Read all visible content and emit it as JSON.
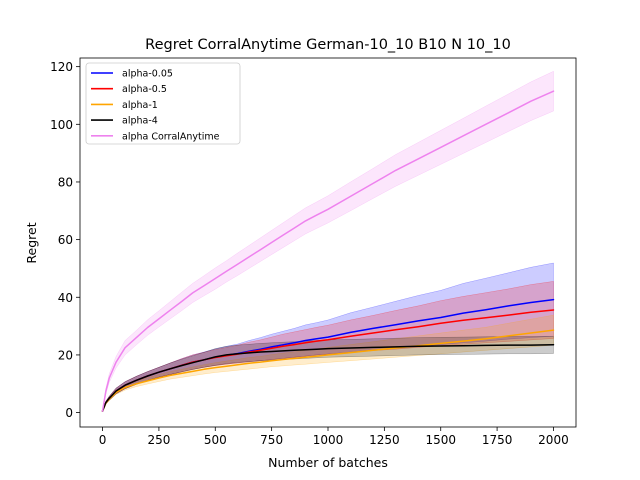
{
  "chart_data": {
    "type": "line",
    "title": "Regret CorralAnytime German-10_10 B10 N 10_10",
    "xlabel": "Number of batches",
    "ylabel": "Regret",
    "xlim": [
      -100,
      2100
    ],
    "ylim": [
      -5,
      123
    ],
    "xticks": [
      0,
      250,
      500,
      750,
      1000,
      1250,
      1500,
      1750,
      2000
    ],
    "yticks": [
      0,
      20,
      40,
      60,
      80,
      100,
      120
    ],
    "grid": false,
    "legend_position": "top-left",
    "x": [
      0,
      15,
      30,
      60,
      100,
      150,
      200,
      250,
      300,
      350,
      400,
      450,
      500,
      550,
      600,
      650,
      700,
      750,
      800,
      850,
      900,
      950,
      1000,
      1100,
      1200,
      1300,
      1400,
      1500,
      1600,
      1700,
      1800,
      1900,
      2000
    ],
    "series": [
      {
        "name": "alpha-0.05",
        "color": "#0000ff",
        "values": [
          0.5,
          3.5,
          5,
          7.5,
          9.5,
          11.2,
          12.7,
          14,
          15.2,
          16.4,
          17.5,
          18.3,
          19.2,
          19.9,
          20.5,
          21.3,
          22,
          22.8,
          23.5,
          24.2,
          25,
          25.6,
          26.2,
          27.8,
          29.2,
          30.5,
          31.8,
          33,
          34.5,
          35.7,
          37,
          38.2,
          39.2
        ],
        "lower": [
          0.3,
          3,
          4.3,
          6.5,
          8.3,
          9.8,
          11.2,
          12.3,
          13.2,
          14.1,
          15,
          15.7,
          16.3,
          16.8,
          17.2,
          17.6,
          18,
          18.4,
          18.8,
          19.2,
          19.6,
          20,
          20.3,
          21,
          21.8,
          22.4,
          23,
          23.6,
          24.2,
          24.8,
          25.5,
          26,
          26.5
        ],
        "upper": [
          0.7,
          4,
          5.7,
          8.5,
          10.7,
          12.6,
          14.2,
          15.7,
          17.2,
          18.7,
          20,
          21,
          22.1,
          23,
          23.8,
          25,
          26,
          27.2,
          28.2,
          29.2,
          30.4,
          31.2,
          32.1,
          34.6,
          36.6,
          38.6,
          40.6,
          42.4,
          44.8,
          46.6,
          48.5,
          50.4,
          51.9
        ]
      },
      {
        "name": "alpha-0.5",
        "color": "#ff0000",
        "values": [
          0.5,
          3.5,
          5,
          7.5,
          9.5,
          11.2,
          12.7,
          14,
          15.2,
          16.4,
          17.5,
          18.3,
          19.1,
          19.7,
          20.3,
          21,
          21.6,
          22.3,
          23,
          23.6,
          24.2,
          24.8,
          25.3,
          26.5,
          27.6,
          28.7,
          29.8,
          31,
          32,
          32.9,
          33.8,
          34.8,
          35.6
        ],
        "lower": [
          0.3,
          3,
          4.3,
          6.5,
          8.3,
          9.8,
          11.2,
          12.3,
          13.2,
          14.1,
          15,
          15.7,
          16.3,
          16.8,
          17.2,
          17.6,
          18,
          18.4,
          18.8,
          19.2,
          19.6,
          20,
          20.3,
          20.9,
          21.5,
          22,
          22.6,
          23.2,
          23.7,
          24.2,
          24.7,
          25.2,
          25.7
        ],
        "upper": [
          0.7,
          4,
          5.7,
          8.5,
          10.7,
          12.6,
          14.2,
          15.7,
          17.2,
          18.7,
          20,
          20.9,
          21.9,
          22.6,
          23.4,
          24.4,
          25.2,
          26.2,
          27.2,
          28,
          28.8,
          29.6,
          30.3,
          32.1,
          33.7,
          35.4,
          37,
          38.8,
          40.3,
          41.6,
          42.9,
          44.4,
          45.5
        ]
      },
      {
        "name": "alpha-1",
        "color": "#ffa500",
        "values": [
          0.5,
          3.3,
          4.7,
          7,
          8.7,
          10,
          11,
          12,
          12.9,
          13.6,
          14.3,
          15,
          15.6,
          16.1,
          16.6,
          17.1,
          17.5,
          18,
          18.4,
          18.8,
          19.2,
          19.6,
          20,
          20.8,
          21.6,
          22.4,
          23.2,
          24,
          24.8,
          25.6,
          26.6,
          27.6,
          28.6
        ],
        "lower": [
          0.3,
          2.9,
          4.2,
          6.3,
          7.8,
          9,
          9.9,
          10.8,
          11.6,
          12.2,
          12.8,
          13.4,
          13.9,
          14.3,
          14.7,
          15.1,
          15.5,
          15.9,
          16.2,
          16.5,
          16.8,
          17.1,
          17.4,
          18,
          18.6,
          19.2,
          19.8,
          20.4,
          21,
          21.6,
          22.2,
          22.8,
          23.4
        ],
        "upper": [
          0.7,
          3.7,
          5.2,
          7.7,
          9.6,
          11,
          12.1,
          13.2,
          14.2,
          15,
          15.8,
          16.6,
          17.3,
          17.9,
          18.5,
          19.1,
          19.5,
          20.1,
          20.6,
          21.1,
          21.6,
          22.1,
          22.6,
          23.6,
          24.6,
          25.6,
          26.6,
          27.6,
          28.6,
          29.6,
          31,
          32.4,
          33.8
        ]
      },
      {
        "name": "alpha-4",
        "color": "#000000",
        "values": [
          0.5,
          3.5,
          5,
          7.5,
          9.5,
          11.2,
          12.7,
          14,
          15.2,
          16.3,
          17.3,
          18.3,
          19.3,
          20,
          20.4,
          20.7,
          21,
          21.2,
          21.4,
          21.6,
          21.8,
          22,
          22.2,
          22.4,
          22.6,
          22.8,
          23,
          23.1,
          23.2,
          23.3,
          23.4,
          23.4,
          23.5
        ],
        "lower": [
          0.3,
          3,
          4.3,
          6.5,
          8.3,
          9.8,
          11.2,
          12.3,
          13.2,
          14.1,
          14.9,
          15.7,
          16.4,
          17,
          17.4,
          17.7,
          18,
          18.2,
          18.4,
          18.6,
          18.8,
          19,
          19.2,
          19.4,
          19.6,
          19.8,
          20,
          20.1,
          20.2,
          20.3,
          20.4,
          20.4,
          20.5
        ],
        "upper": [
          0.7,
          4,
          5.7,
          8.5,
          10.7,
          12.6,
          14.2,
          15.7,
          17.2,
          18.5,
          19.7,
          20.9,
          22.2,
          23,
          23.4,
          23.7,
          24,
          24.2,
          24.4,
          24.6,
          24.8,
          25,
          25.2,
          25.4,
          25.6,
          25.8,
          26,
          26.1,
          26.2,
          26.3,
          26.4,
          26.4,
          26.5
        ]
      },
      {
        "name": "alpha CorralAnytime",
        "color": "#ee82ee",
        "values": [
          0.5,
          7.5,
          12,
          17.5,
          22.5,
          26,
          29.5,
          32.5,
          35.5,
          38.5,
          41.5,
          44,
          46.5,
          49,
          51.5,
          54,
          56.5,
          59,
          61.5,
          64,
          66.5,
          68.5,
          70.5,
          75,
          79.5,
          84,
          88,
          92,
          96,
          100,
          104,
          108,
          111.5
        ],
        "lower": [
          0.3,
          6.5,
          10.5,
          15.5,
          20,
          23.5,
          26.8,
          29.7,
          32.5,
          35.3,
          38.2,
          40.5,
          42.8,
          45.3,
          47.6,
          50,
          52.4,
          54.8,
          57.2,
          59.6,
          62,
          63.9,
          65.8,
          70,
          74.3,
          78.5,
          82.3,
          86.1,
          89.9,
          93.7,
          97.5,
          101.3,
          104.6
        ],
        "upper": [
          0.7,
          8.5,
          13.5,
          19.5,
          25,
          28.5,
          32.2,
          35.3,
          38.5,
          41.7,
          44.8,
          47.5,
          50.2,
          52.7,
          55.4,
          58,
          60.6,
          63.2,
          65.8,
          68.4,
          71,
          73.1,
          75.2,
          80,
          84.7,
          89.5,
          93.7,
          97.9,
          102.1,
          106.3,
          110.5,
          114.7,
          118.4
        ]
      }
    ]
  }
}
